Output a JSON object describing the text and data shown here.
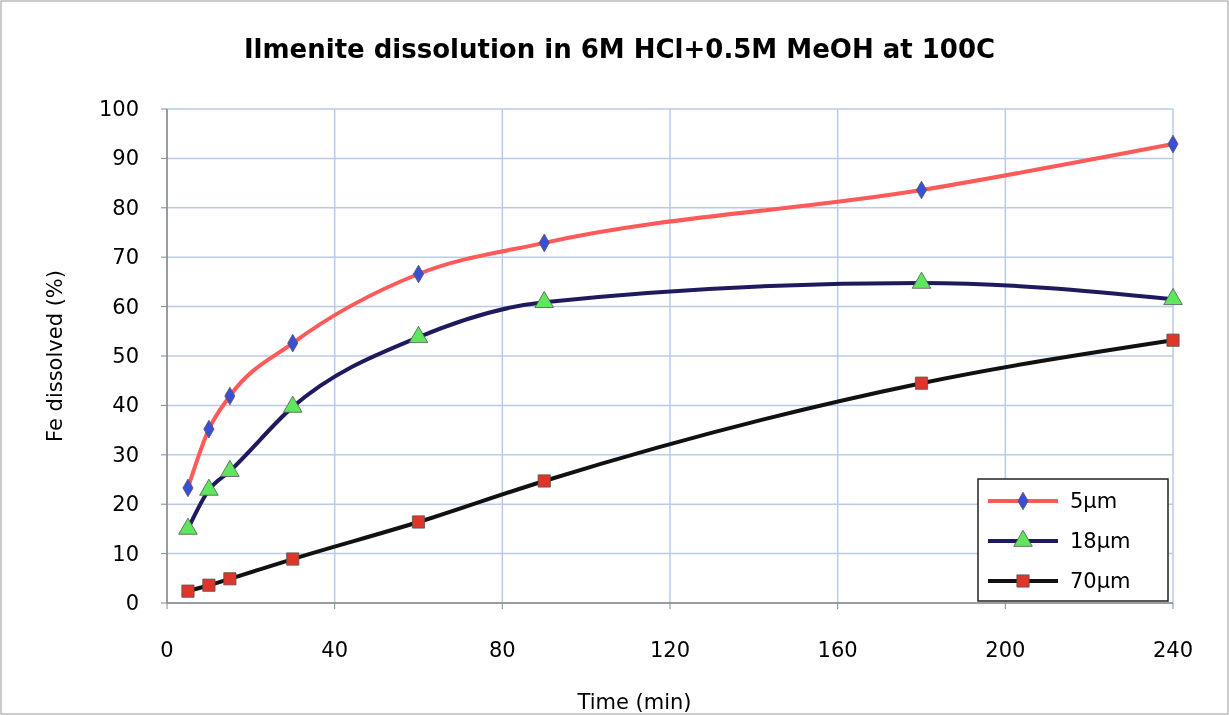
{
  "chart_data": {
    "type": "line",
    "title": "Ilmenite dissolution in 6M HCl+0.5M MeOH at 100C",
    "xlabel": "Time (min)",
    "ylabel": "Fe dissolved (%)",
    "xlim": [
      0,
      240
    ],
    "xticks": [
      0,
      40,
      80,
      120,
      160,
      200,
      240
    ],
    "ylim": [
      0,
      100
    ],
    "yticks": [
      0,
      10,
      20,
      30,
      40,
      50,
      60,
      70,
      80,
      90,
      100
    ],
    "grid": true,
    "legend": "bottom right",
    "series": [
      {
        "name": "5µm",
        "color": "#ff5a5a",
        "marker": "diamond",
        "x": [
          5,
          10,
          15,
          30,
          60,
          90,
          180,
          240
        ],
        "values": [
          23.3,
          35.2,
          41.9,
          52.6,
          66.6,
          72.9,
          83.6,
          92.9
        ]
      },
      {
        "name": "18µm",
        "color": "#1f1a5e",
        "marker": "triangle",
        "x": [
          5,
          10,
          15,
          30,
          60,
          90,
          180,
          240
        ],
        "values": [
          15,
          22.9,
          26.7,
          39.7,
          53.8,
          60.9,
          64.8,
          61.5
        ]
      },
      {
        "name": "70µm",
        "color": "#111111",
        "marker": "square",
        "x": [
          5,
          10,
          15,
          30,
          60,
          90,
          180,
          240
        ],
        "values": [
          2.4,
          3.6,
          4.9,
          8.9,
          16.4,
          24.7,
          44.5,
          53.2
        ]
      }
    ]
  }
}
